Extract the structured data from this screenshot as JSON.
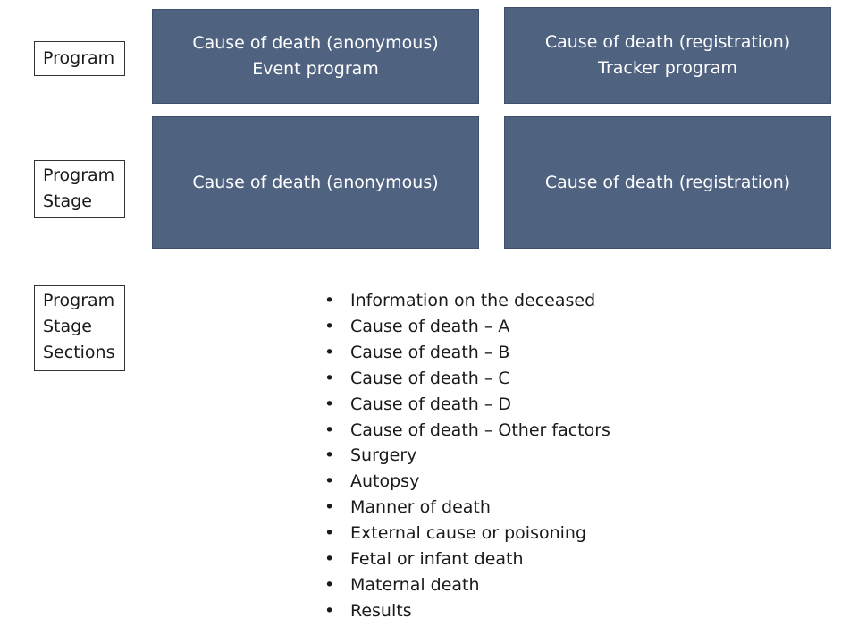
{
  "labels": {
    "program": [
      "Program"
    ],
    "program_stage": [
      "Program",
      "Stage"
    ],
    "program_stage_sections": [
      "Program",
      "Stage",
      "Sections"
    ]
  },
  "programs": [
    {
      "lines": [
        "Cause of death (anonymous)",
        "Event program"
      ]
    },
    {
      "lines": [
        "Cause of death (registration)",
        "Tracker program"
      ]
    }
  ],
  "program_stages": [
    {
      "lines": [
        "Cause of death (anonymous)"
      ]
    },
    {
      "lines": [
        "Cause of death (registration)"
      ]
    }
  ],
  "bullet_glyph": "•",
  "sections": [
    "Information on the deceased",
    "Cause of death – A",
    "Cause of death – B",
    "Cause of death – C",
    "Cause of death – D",
    "Cause of death – Other factors",
    "Surgery",
    "Autopsy",
    "Manner of death",
    "External cause or poisoning",
    "Fetal or infant death",
    "Maternal death",
    "Results"
  ],
  "colors": {
    "tile_fill": "#4f6280",
    "tile_text": "#ffffff",
    "label_border": "#333333"
  }
}
